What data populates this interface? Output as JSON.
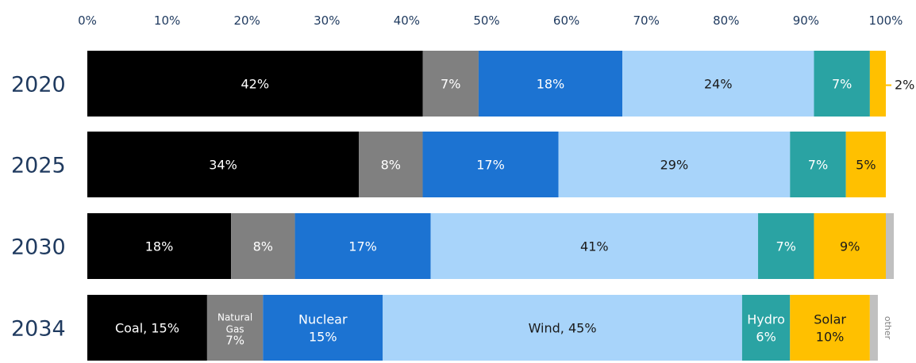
{
  "chart_data": {
    "type": "stacked-bar-horizontal-100",
    "x_ticks": [
      "0%",
      "10%",
      "20%",
      "30%",
      "40%",
      "50%",
      "60%",
      "70%",
      "80%",
      "90%",
      "100%"
    ],
    "xlim": [
      0,
      100
    ],
    "grid": false,
    "categories": [
      "2020",
      "2025",
      "2030",
      "2034"
    ],
    "series": [
      {
        "name": "Coal",
        "color": "#000000",
        "text_color": "#ffffff",
        "values": [
          42,
          34,
          18,
          15
        ]
      },
      {
        "name": "Natural Gas",
        "color": "#808080",
        "text_color": "#ffffff",
        "values": [
          7,
          8,
          8,
          7
        ]
      },
      {
        "name": "Nuclear",
        "color": "#1c73d2",
        "text_color": "#ffffff",
        "values": [
          18,
          17,
          17,
          15
        ]
      },
      {
        "name": "Wind",
        "color": "#a8d4fa",
        "text_color": "#1a1a1a",
        "values": [
          24,
          29,
          41,
          45
        ]
      },
      {
        "name": "Hydro",
        "color": "#2aa3a3",
        "text_color": "#ffffff",
        "values": [
          7,
          7,
          7,
          6
        ]
      },
      {
        "name": "Solar",
        "color": "#ffc000",
        "text_color": "#1a1a1a",
        "values": [
          2,
          5,
          9,
          10
        ]
      },
      {
        "name": "other",
        "color": "#c0c0c0",
        "text_color": "#808080",
        "values": [
          0,
          0,
          1,
          1
        ]
      }
    ],
    "segment_labels": [
      [
        "42%",
        "7%",
        "18%",
        "24%",
        "7%",
        "2%",
        ""
      ],
      [
        "34%",
        "8%",
        "17%",
        "29%",
        "7%",
        "5%",
        ""
      ],
      [
        "18%",
        "8%",
        "17%",
        "41%",
        "7%",
        "9%",
        ""
      ],
      [
        "Coal, 15%",
        "Natural\nGas\n7%",
        "Nuclear\n15%",
        "Wind, 45%",
        "Hydro\n6%",
        "Solar\n10%",
        "other"
      ]
    ]
  }
}
